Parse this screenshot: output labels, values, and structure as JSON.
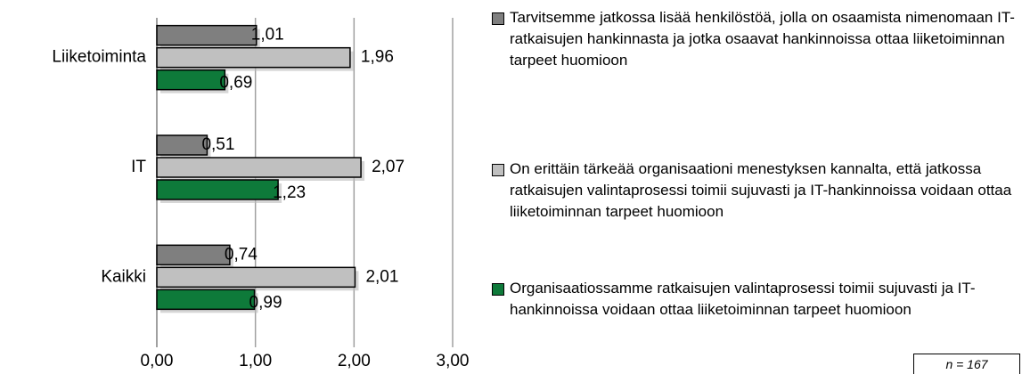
{
  "chart_data": {
    "type": "barh",
    "categories": [
      "Liiketoiminta",
      "IT",
      "Kaikki"
    ],
    "series": [
      {
        "name": "Tarvitsemme jatkossa lisää henkilöstöä, jolla on osaamista nimenomaan IT-ratkaisujen hankinnasta ja jotka osaavat hankinnoissa ottaa liiketoiminnan tarpeet huomioon",
        "color": "#7f7f7f",
        "values": [
          1.01,
          0.51,
          0.74
        ],
        "value_labels": [
          "1,01",
          "0,51",
          "0,74"
        ]
      },
      {
        "name": "On erittäin tärkeää organisaationi menestyksen kannalta, että jatkossa ratkaisujen valintaprosessi toimii sujuvasti ja IT-hankinnoissa voidaan ottaa liiketoiminnan tarpeet huomioon",
        "color": "#c0c0c0",
        "values": [
          1.96,
          2.07,
          2.01
        ],
        "value_labels": [
          "1,96",
          "2,07",
          "2,01"
        ]
      },
      {
        "name": "Organisaatiossamme ratkaisujen valintaprosessi toimii sujuvasti ja IT-hankinnoissa voidaan ottaa liiketoiminnan tarpeet huomioon",
        "color": "#0e7a3a",
        "values": [
          0.69,
          1.23,
          0.99
        ],
        "value_labels": [
          "0,69",
          "1,23",
          "0,99"
        ]
      }
    ],
    "xlim": [
      0,
      3
    ],
    "xticks": [
      {
        "value": 0,
        "label": "0,00"
      },
      {
        "value": 1,
        "label": "1,00"
      },
      {
        "value": 2,
        "label": "2,00"
      },
      {
        "value": 3,
        "label": "3,00"
      }
    ],
    "grid": true,
    "legend": "right",
    "note": "n = 167"
  }
}
